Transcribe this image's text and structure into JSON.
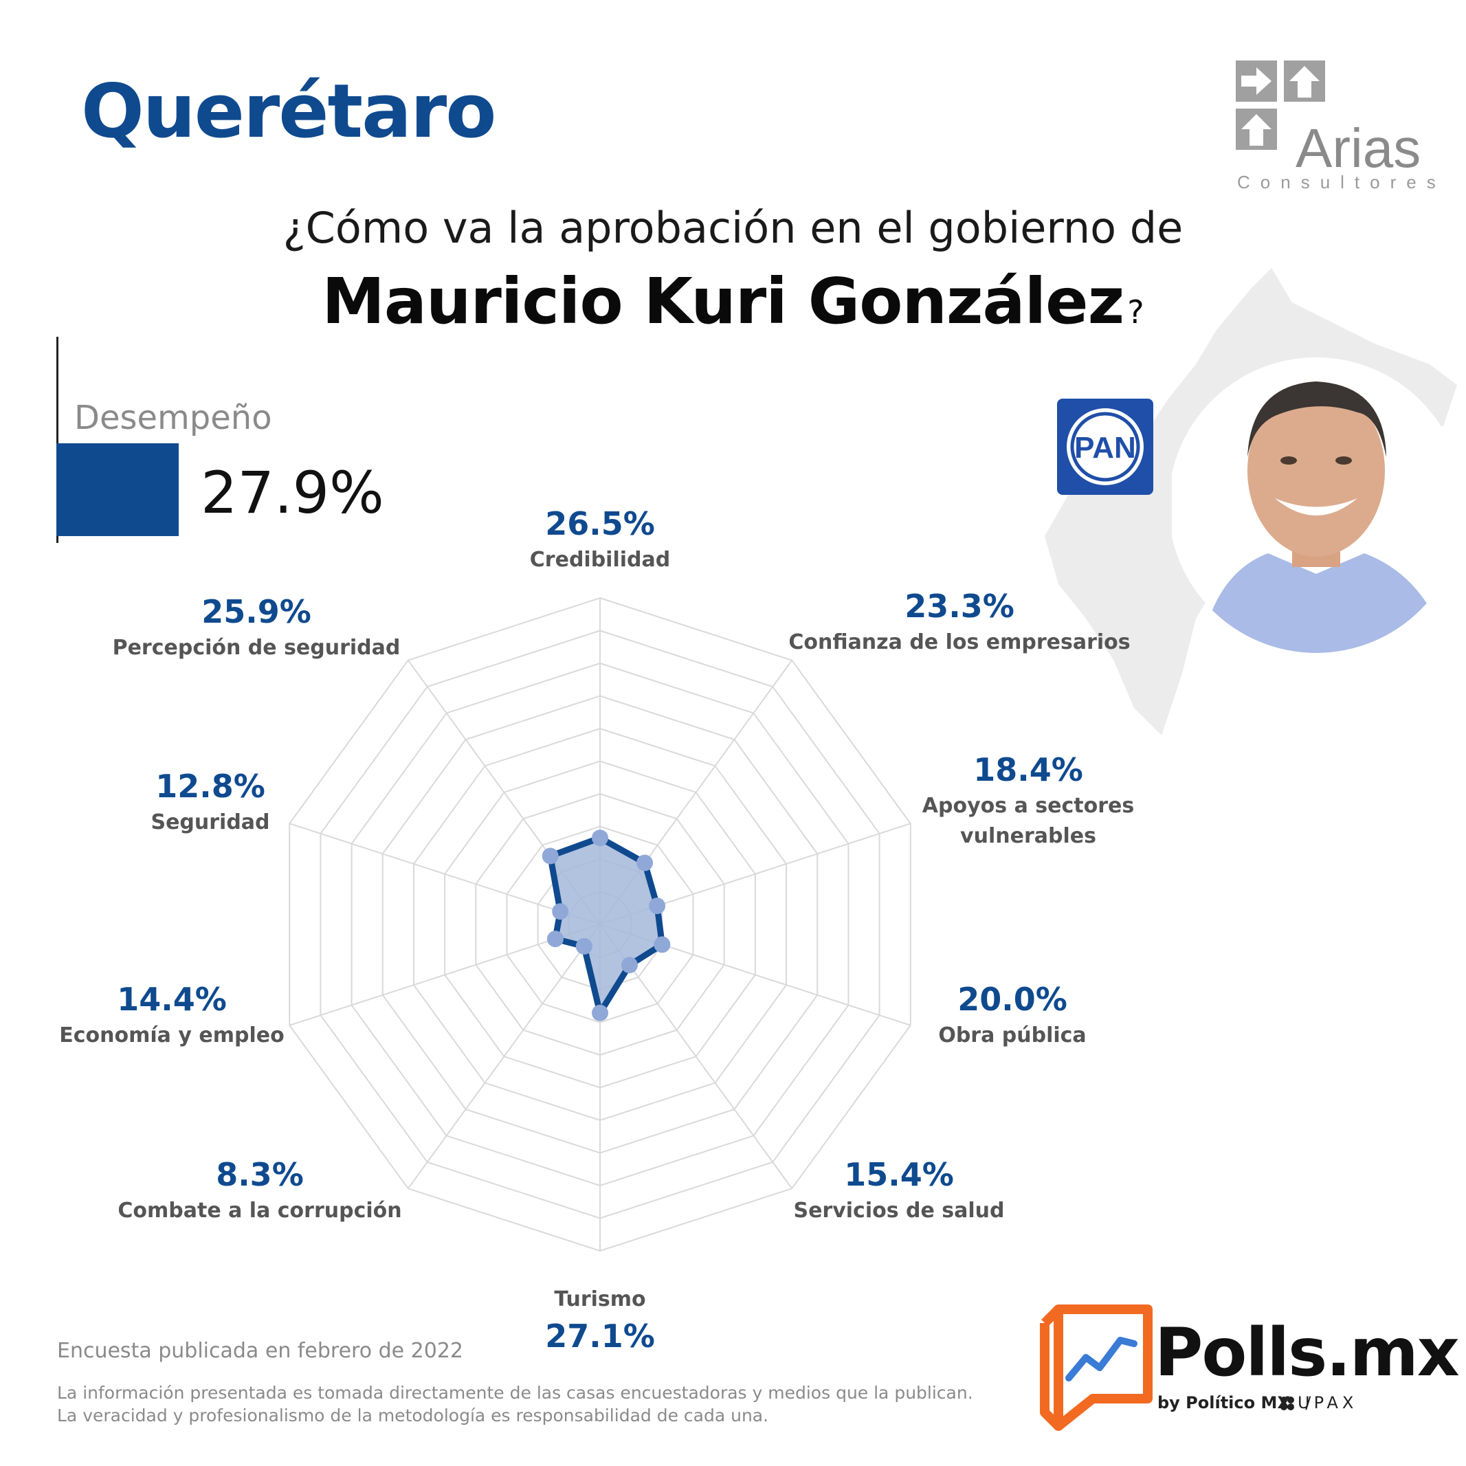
{
  "header": {
    "state": "Querétaro",
    "question_line1": "¿Cómo va la aprobación en el gobierno de",
    "question_name": "Mauricio Kuri González",
    "question_mark": "?"
  },
  "performance": {
    "label": "Desempeño",
    "value": "27.9%"
  },
  "logos": {
    "arias_name": "Arias",
    "arias_sub": "Consultores",
    "party": "PAN",
    "polls_name": "Polls.mx",
    "polls_by": "by Político MX",
    "polls_sep": "/",
    "polls_partner": "UPAX"
  },
  "colors": {
    "primary_blue": "#0f4a8f",
    "fill_blue": "#a4b8d9",
    "point_blue": "#8fa8d8",
    "grid_gray": "#d9d9d9",
    "polls_orange": "#f26a21"
  },
  "chart_data": {
    "type": "radar",
    "max": 100,
    "rings": 10,
    "categories": [
      "Credibilidad",
      "Confianza de los empresarios",
      "Apoyos a sectores vulnerables",
      "Obra pública",
      "Servicios de salud",
      "Turismo",
      "Combate a la corrupción",
      "Economía y empleo",
      "Seguridad",
      "Percepción de seguridad"
    ],
    "values": [
      26.5,
      23.3,
      18.4,
      20.0,
      15.4,
      27.1,
      8.3,
      14.4,
      12.8,
      25.9
    ],
    "value_labels": [
      "26.5%",
      "23.3%",
      "18.4%",
      "20.0%",
      "15.4%",
      "27.1%",
      "8.3%",
      "14.4%",
      "12.8%",
      "25.9%"
    ],
    "label_lines": [
      [
        "Credibilidad"
      ],
      [
        "Confianza de los empresarios"
      ],
      [
        "Apoyos a sectores",
        "vulnerables"
      ],
      [
        "Obra pública"
      ],
      [
        "Servicios de salud"
      ],
      [
        "Turismo"
      ],
      [
        "Combate a la corrupción"
      ],
      [
        "Economía y empleo"
      ],
      [
        "Seguridad"
      ],
      [
        "Percepción de seguridad"
      ]
    ]
  },
  "footer": {
    "survey_note": "Encuesta publicada en febrero de 2022",
    "disclaimer_line1": "La información presentada es tomada directamente de las casas encuestadoras y medios que la publican.",
    "disclaimer_line2": "La veracidad y profesionalismo de la metodología es responsabilidad de cada una."
  }
}
